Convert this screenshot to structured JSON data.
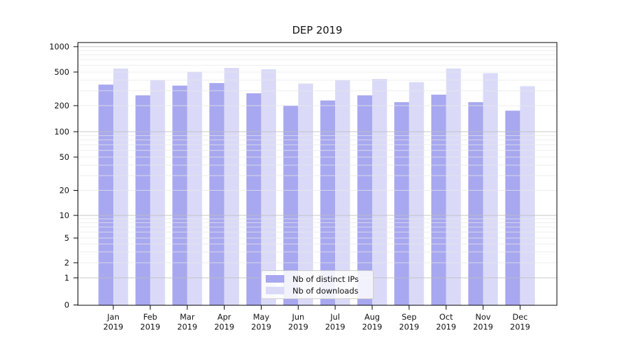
{
  "title": "DEP 2019",
  "legend": {
    "items": [
      {
        "label": "Nb of distinct IPs",
        "color": "#a8a8f0"
      },
      {
        "label": "Nb of downloads",
        "color": "#dadaf8"
      }
    ]
  },
  "chart_data": {
    "type": "bar",
    "title": "DEP 2019",
    "categories": [
      "Jan 2019",
      "Feb 2019",
      "Mar 2019",
      "Apr 2019",
      "May 2019",
      "Jun 2019",
      "Jul 2019",
      "Aug 2019",
      "Sep 2019",
      "Oct 2019",
      "Nov 2019",
      "Dec 2019"
    ],
    "series": [
      {
        "name": "Nb of distinct IPs",
        "color": "#a8a8f0",
        "values": [
          355,
          265,
          345,
          370,
          280,
          200,
          230,
          265,
          220,
          270,
          220,
          175
        ]
      },
      {
        "name": "Nb of downloads",
        "color": "#dadaf8",
        "values": [
          550,
          400,
          505,
          560,
          540,
          365,
          400,
          415,
          380,
          550,
          485,
          340
        ]
      }
    ],
    "xlabel": "",
    "ylabel": "",
    "yscale": "symlog",
    "y_ticks": [
      0,
      1,
      2,
      5,
      10,
      20,
      50,
      100,
      200,
      500,
      1000
    ],
    "ylim": [
      0,
      1120
    ],
    "grid": true,
    "grid_over_bars": true,
    "legend_position": "lower center",
    "colors": {
      "axis": "#000000",
      "text": "#111111",
      "grid_major": "#bdbdbd",
      "grid_minor": "#e7e7e7",
      "background": "#ffffff"
    }
  }
}
